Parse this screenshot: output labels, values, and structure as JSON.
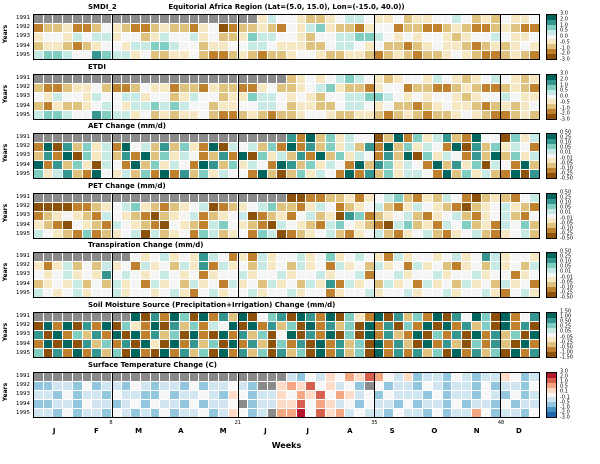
{
  "figure": {
    "title": "Equitorial Africa Region (Lat=(5.0, 15.0), Lon=(-15.0, 40.0))",
    "xlabel": "Weeks",
    "ylabel": "Years",
    "years": [
      "1991",
      "1992",
      "1993",
      "1994",
      "1995"
    ],
    "months": [
      "J",
      "F",
      "M",
      "A",
      "M",
      "J",
      "J",
      "A",
      "S",
      "O",
      "N",
      "D"
    ],
    "week_ticks": [
      8,
      21,
      35,
      48
    ],
    "gridline_weeks": [
      8,
      21,
      35,
      48
    ],
    "missing_color": "#8a8a8a",
    "background": "#ffffff"
  },
  "palettes": {
    "brbg": [
      "#8c510a",
      "#bf812d",
      "#dfc27d",
      "#f6e8c3",
      "#f5f5f5",
      "#c7eae5",
      "#80cdc1",
      "#35978f",
      "#01665e"
    ],
    "rdbu": [
      "#2166ac",
      "#4393c3",
      "#92c5de",
      "#d1e5f0",
      "#f7f7f7",
      "#fddbc7",
      "#f4a582",
      "#d6604d",
      "#b2182b"
    ]
  },
  "chart_data": {
    "type": "heatmap",
    "encoding": "Each row string = 52 weekly cells for one year. Digits 0-8 index the panel palette from most negative (0) to most positive (8); X = missing data (gray). Values are estimates read from the discrete color scale.",
    "panels": [
      {
        "id": "smdi2",
        "title": "SMDI_2",
        "palette": "brbg",
        "colorbar_labels": [
          "3.0",
          "2.0",
          "1.0",
          "0.5",
          "0.0",
          "-0.5",
          "-1.0",
          "-2.0",
          "-3.0"
        ],
        "rows": [
          "XXXXXXXXXXXXXXXXXXXXXXX35443223455433423344542324334",
          "1223112432112322134012232143563221344122112321123211",
          "3443545534423544534223655443244556654343443234454334",
          "2332123443556654423344554333224554342212343321232343",
          "5665447655342233421123212234432233212321223432112321"
        ]
      },
      {
        "id": "etdi",
        "title": "ETDI",
        "palette": "brbg",
        "colorbar_labels": [
          "3.0",
          "2.0",
          "1.0",
          "0.5",
          "0.0",
          "-0.5",
          "-1.0",
          "-2.0",
          "-3.0"
        ],
        "rows": [
          "XXXXXXXXXXXXXXXXXXXXXXXXXX23434565432344354323454323",
          "2112334211243312213221134223456322134412211232112321",
          "4354435445534423544233655434324455665434344323445433",
          "2132234543556565442334455423322455434221234332123234",
          "5665447655342323342112321223443223321232122343211232"
        ]
      },
      {
        "id": "aet-change",
        "title": "AET Change (mm/d)",
        "palette": "brbg",
        "colorbar_labels": [
          "0.50",
          "0.25",
          "0.10",
          "0.05",
          "0.01",
          "-0.01",
          "-0.05",
          "-0.10",
          "-0.25",
          "-0.50"
        ],
        "rows": [
          "XXXXXXXXXXXXXXXXXXXXXXXXXX71826354402816357218440635",
          "1807263518452726318054526181726352718263541807263541",
          "2718063527182635412718063527182635417280635417282635",
          "8172630541826354187263541872635418276354182736054182",
          "6357218435261817263544182026354181726355418263521807"
        ]
      },
      {
        "id": "pet-change",
        "title": "PET Change (mm/d)",
        "palette": "brbg",
        "colorbar_labels": [
          "0.50",
          "0.25",
          "0.10",
          "0.05",
          "0.01",
          "-0.01",
          "-0.05",
          "-0.10",
          "-0.25",
          "-0.50"
        ],
        "rows": [
          "XXXXXXXXXXXXXXXXXXXXXXXXXX00112231345621325410232145",
          "0000112345632123450123456221354123452135432102345321",
          "1234321543210234512345012314523076123452134521345214",
          "3210432154321043215643210543215643210562315462315462",
          "5432161234505234165234165012345213452134521345213452"
        ]
      },
      {
        "id": "transpiration-change",
        "title": "Transpiration Change (mm/d)",
        "palette": "brbg",
        "colorbar_labels": [
          "0.50",
          "0.25",
          "0.10",
          "0.05",
          "0.01",
          "-0.01",
          "-0.05",
          "-0.10",
          "-0.25",
          "-0.50"
        ],
        "rows": [
          "XXXXXXXXXX434534375413153445346345431534434534753443",
          "3135242534153425371534253425341534253415342134253425",
          "4345343745434543413445344534453445144534453445344134",
          "2343524253415342534153425342537153425341534253425341",
          "5434534453443453145344534453441344534453445344531453"
        ]
      },
      {
        "id": "soil-moisture-source-change",
        "title": "Soil Moisture Source (Precipitation+Irrigation) Change (mm/d)",
        "palette": "brbg",
        "colorbar_labels": [
          "1.50",
          "1.00",
          "0.50",
          "0.25",
          "0.05",
          "-0.05",
          "-0.25",
          "-0.50",
          "-1.00",
          "-1.50"
        ],
        "rows": [
          "XXXXXXXXXX807186081728046708718063180726180748608147",
          "0818071806318072615480817260817260817061808172608170",
          "7081627180817260810817260480718060817218061708172608",
          "1808072617083081726081720617081726081720817206172081",
          "6071817260810817260817260726081726081717260817260817"
        ]
      },
      {
        "id": "surface-temperature-change",
        "title": "Surface Temperature Change (C)",
        "palette": "rdbu",
        "colorbar_labels": [
          "3.0",
          "2.0",
          "1.0",
          "0.5",
          "0.1",
          "-0.1",
          "-0.5",
          "-1.0",
          "-2.0",
          "-3.0"
        ],
        "rows": [
          "XXXXXXXXXXXXXXXXXXXXXXXXXX32435465764352332432335423",
          "22332423324323324233432XX565745342X42332432332423324",
          "3324233243322423343254233546574653424333242332432423",
          "223324332342433242334X233557465342433242332423324233",
          "332423324323242334235423X668475634332433242336423324"
        ]
      }
    ]
  }
}
